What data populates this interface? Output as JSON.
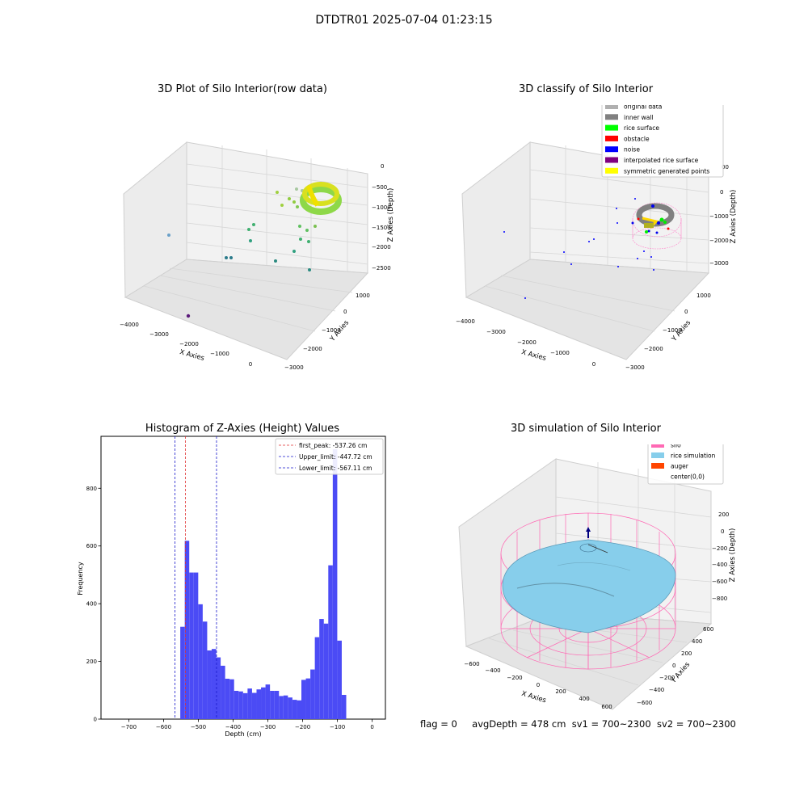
{
  "figure": {
    "title": "DTDTR01 2025-07-04 01:23:15",
    "status_line": {
      "flag": "flag = 0",
      "avg_depth": "avgDepth = 478 cm",
      "sv1": "sv1 = 700~2300",
      "sv2": "sv2 = 700~2300"
    }
  },
  "colors": {
    "hist_bar": "#4b4bf5",
    "first_peak_line": "#e03030",
    "limit_line": "#1a1acc",
    "silo": "#ff69b4",
    "rice": "#87ceeb",
    "auger": "#ff4500"
  },
  "chart_data": [
    {
      "id": "raw",
      "type": "scatter",
      "title": "3D Plot of Silo Interior(row data)",
      "xlabel": "X Axies",
      "ylabel": "Y Axies",
      "zlabel": "Z Axies (Depth)",
      "x_ticks": [
        "−4000",
        "−3000",
        "−2000",
        "−1000",
        "0"
      ],
      "y_ticks": [
        "1000",
        "0",
        "−1000",
        "−2000",
        "−3000"
      ],
      "z_ticks": [
        "0",
        "−500",
        "−1000",
        "−1500",
        "−2000",
        "−2500"
      ]
    },
    {
      "id": "classify",
      "type": "scatter",
      "title": "3D classify of Silo Interior",
      "xlabel": "X Axies",
      "ylabel": "Y Axies",
      "zlabel": "Z Axies (Depth)",
      "x_ticks": [
        "−4000",
        "−3000",
        "−2000",
        "−1000",
        "0"
      ],
      "y_ticks": [
        "1000",
        "0",
        "−1000",
        "−2000",
        "−3000"
      ],
      "z_ticks": [
        "0",
        "−1000",
        "−2000",
        "−3000"
      ],
      "z_tick_partial": "00",
      "legend": [
        {
          "label": "original data",
          "color": "#b0b0b0"
        },
        {
          "label": "inner wall",
          "color": "#808080"
        },
        {
          "label": "rice surface",
          "color": "#00ff00"
        },
        {
          "label": "obstacle",
          "color": "#ff0000"
        },
        {
          "label": "noise",
          "color": "#0000ff"
        },
        {
          "label": "interpolated rice surface",
          "color": "#800080"
        },
        {
          "label": "symmetric generated points",
          "color": "#ffff00"
        }
      ]
    },
    {
      "id": "histogram",
      "type": "bar",
      "title": "Histogram of Z-Axies (Height) Values",
      "xlabel": "Depth (cm)",
      "ylabel": "Frequency",
      "xlim": [
        -780,
        38
      ],
      "ylim": [
        0,
        980
      ],
      "x_ticks": [
        {
          "v": -700,
          "t": "−700"
        },
        {
          "v": -600,
          "t": "−600"
        },
        {
          "v": -500,
          "t": "−500"
        },
        {
          "v": -400,
          "t": "−400"
        },
        {
          "v": -300,
          "t": "−300"
        },
        {
          "v": -200,
          "t": "−200"
        },
        {
          "v": -100,
          "t": "−100"
        },
        {
          "v": 0,
          "t": "0"
        }
      ],
      "y_ticks": [
        {
          "v": 0,
          "t": "0"
        },
        {
          "v": 200,
          "t": "200"
        },
        {
          "v": 400,
          "t": "400"
        },
        {
          "v": 600,
          "t": "600"
        },
        {
          "v": 800,
          "t": "800"
        }
      ],
      "bin_start": -552,
      "bin_width": 12.9,
      "values": [
        320,
        618,
        508,
        508,
        398,
        338,
        238,
        243,
        214,
        185,
        140,
        138,
        98,
        96,
        90,
        106,
        91,
        103,
        110,
        120,
        98,
        98,
        80,
        82,
        75,
        67,
        65,
        136,
        141,
        172,
        284,
        347,
        331,
        533,
        935,
        272,
        84
      ],
      "lines": [
        {
          "x": -537.26,
          "style": "first_peak_line",
          "label": "first_peak: -537.26 cm"
        },
        {
          "x": -447.72,
          "style": "limit_line",
          "label": "Upper_limit: -447.72 cm"
        },
        {
          "x": -567.11,
          "style": "limit_line",
          "label": "Lower_limit: -567.11 cm"
        }
      ]
    },
    {
      "id": "simulation",
      "type": "scatter",
      "title": "3D simulation of Silo Interior",
      "xlabel": "X Axies",
      "ylabel": "Y Axies",
      "zlabel": "Z Axies (Depth)",
      "x_ticks": [
        "−600",
        "−400",
        "−200",
        "0",
        "200",
        "400",
        "600"
      ],
      "y_ticks": [
        "600",
        "400",
        "200",
        "0",
        "−200",
        "−400",
        "−600"
      ],
      "z_ticks": [
        "200",
        "0",
        "−200",
        "−400",
        "−600",
        "−800"
      ],
      "legend": [
        {
          "label": "silo",
          "color": "#ff69b4"
        },
        {
          "label": "rice simulation",
          "color": "#87ceeb"
        },
        {
          "label": "auger",
          "color": "#ff4500"
        },
        {
          "label": "center(0,0)",
          "color": ""
        }
      ]
    }
  ]
}
